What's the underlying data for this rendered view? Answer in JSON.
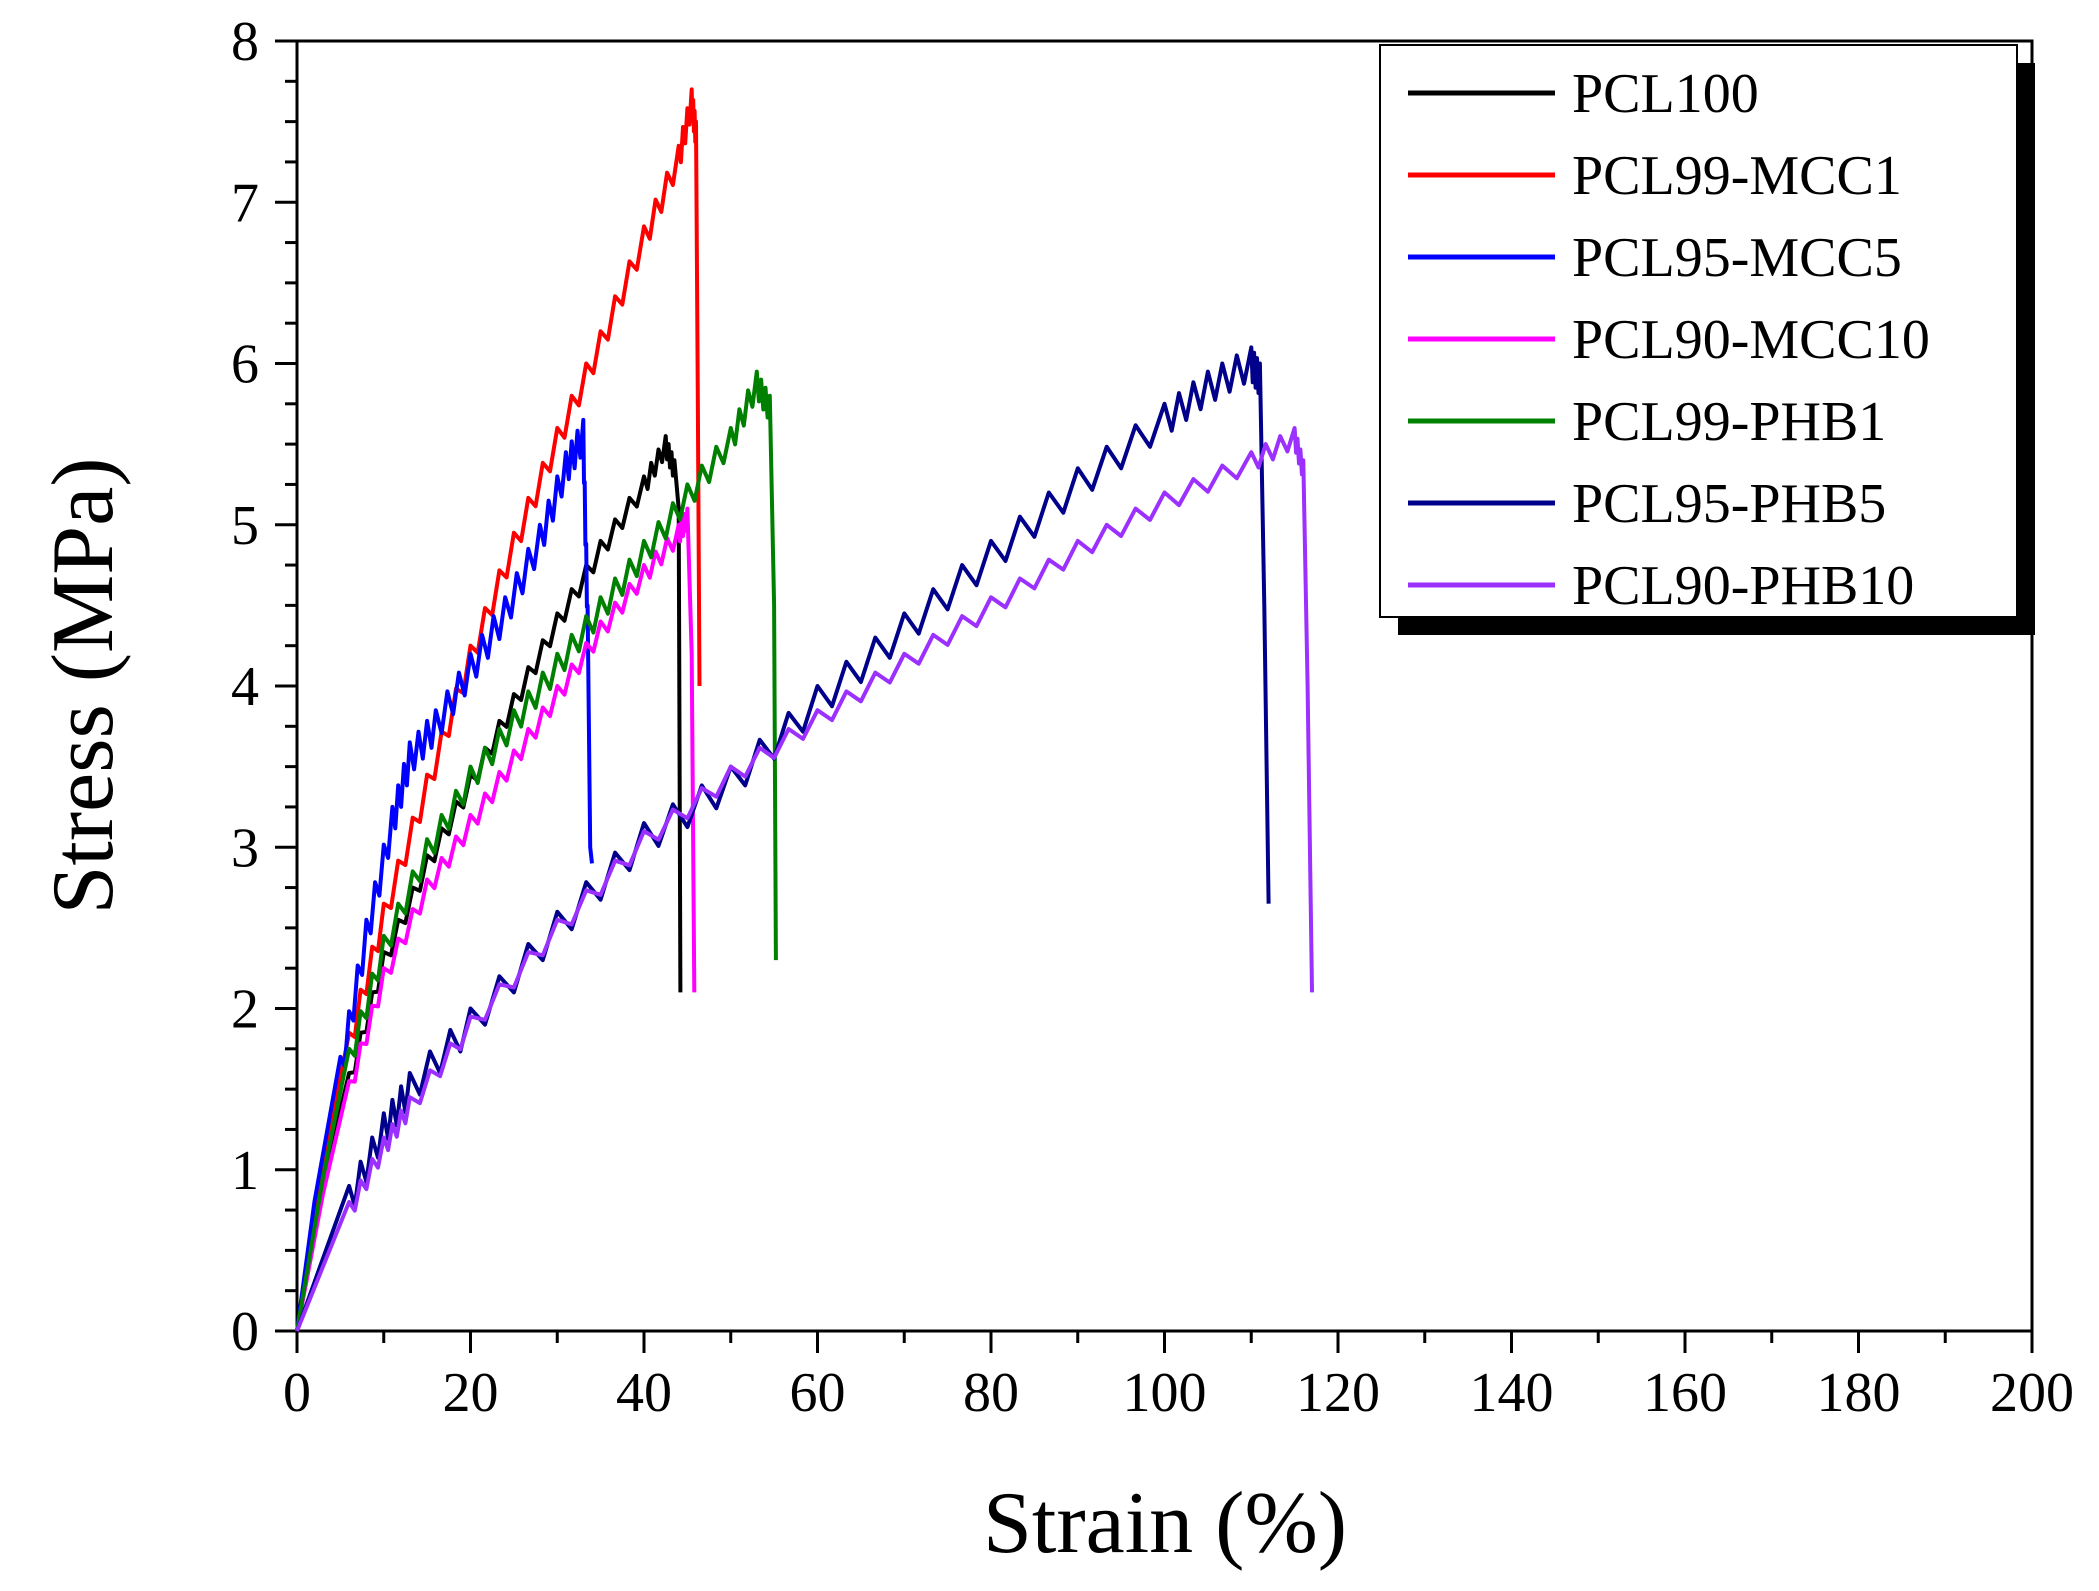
{
  "chart_data": {
    "type": "line",
    "title": "",
    "xlabel": "Strain (%)",
    "ylabel": "Stress (MPa)",
    "xlim": [
      0,
      200
    ],
    "ylim": [
      0,
      8
    ],
    "xticks": [
      "0",
      "20",
      "40",
      "60",
      "80",
      "100",
      "120",
      "140",
      "160",
      "180",
      "200"
    ],
    "yticks": [
      "0",
      "1",
      "2",
      "3",
      "4",
      "5",
      "6",
      "7",
      "8"
    ],
    "grid": false,
    "legend_position": "top-right",
    "series": [
      {
        "name": "PCL100",
        "color": "#000000",
        "points": [
          [
            0,
            0
          ],
          [
            3,
            0.9
          ],
          [
            6,
            1.6
          ],
          [
            10,
            2.35
          ],
          [
            15,
            2.95
          ],
          [
            20,
            3.45
          ],
          [
            25,
            3.95
          ],
          [
            30,
            4.45
          ],
          [
            35,
            4.9
          ],
          [
            40,
            5.3
          ],
          [
            42.5,
            5.55
          ],
          [
            43.5,
            5.4
          ],
          [
            44,
            5.1
          ],
          [
            44.2,
            2.1
          ]
        ]
      },
      {
        "name": "PCL99-MCC1",
        "color": "#ff0000",
        "points": [
          [
            0,
            0
          ],
          [
            3,
            1.0
          ],
          [
            6,
            1.85
          ],
          [
            10,
            2.65
          ],
          [
            15,
            3.45
          ],
          [
            20,
            4.25
          ],
          [
            25,
            4.95
          ],
          [
            30,
            5.6
          ],
          [
            35,
            6.2
          ],
          [
            40,
            6.85
          ],
          [
            44,
            7.35
          ],
          [
            45.5,
            7.7
          ],
          [
            46,
            7.5
          ],
          [
            46.2,
            5.8
          ],
          [
            46.4,
            4.0
          ]
        ]
      },
      {
        "name": "PCL95-MCC5",
        "color": "#0000ff",
        "points": [
          [
            0,
            0
          ],
          [
            2,
            0.8
          ],
          [
            5,
            1.7
          ],
          [
            8,
            2.55
          ],
          [
            11,
            3.25
          ],
          [
            13,
            3.65
          ],
          [
            16,
            3.85
          ],
          [
            20,
            4.2
          ],
          [
            24,
            4.55
          ],
          [
            28,
            5.0
          ],
          [
            31,
            5.45
          ],
          [
            33,
            5.65
          ],
          [
            33.5,
            4.5
          ],
          [
            33.8,
            3.0
          ],
          [
            34,
            2.9
          ]
        ]
      },
      {
        "name": "PCL90-MCC10",
        "color": "#ff00ff",
        "points": [
          [
            0,
            0
          ],
          [
            3,
            0.85
          ],
          [
            6,
            1.55
          ],
          [
            10,
            2.25
          ],
          [
            15,
            2.8
          ],
          [
            20,
            3.2
          ],
          [
            25,
            3.6
          ],
          [
            30,
            4.0
          ],
          [
            35,
            4.4
          ],
          [
            40,
            4.75
          ],
          [
            44,
            5.0
          ],
          [
            45,
            5.1
          ],
          [
            45.5,
            4.2
          ],
          [
            45.8,
            2.1
          ]
        ]
      },
      {
        "name": "PCL99-PHB1",
        "color": "#008000",
        "points": [
          [
            0,
            0
          ],
          [
            3,
            0.95
          ],
          [
            6,
            1.75
          ],
          [
            10,
            2.45
          ],
          [
            15,
            3.05
          ],
          [
            20,
            3.5
          ],
          [
            25,
            3.85
          ],
          [
            30,
            4.2
          ],
          [
            35,
            4.55
          ],
          [
            40,
            4.9
          ],
          [
            45,
            5.25
          ],
          [
            50,
            5.6
          ],
          [
            53,
            5.95
          ],
          [
            54.5,
            5.8
          ],
          [
            55,
            4.5
          ],
          [
            55.2,
            2.3
          ]
        ]
      },
      {
        "name": "PCL95-PHB5",
        "color": "#00008b",
        "points": [
          [
            0,
            0
          ],
          [
            3,
            0.45
          ],
          [
            6,
            0.9
          ],
          [
            10,
            1.35
          ],
          [
            13,
            1.6
          ],
          [
            20,
            2.0
          ],
          [
            30,
            2.6
          ],
          [
            40,
            3.15
          ],
          [
            50,
            3.5
          ],
          [
            60,
            4.0
          ],
          [
            70,
            4.45
          ],
          [
            80,
            4.9
          ],
          [
            90,
            5.35
          ],
          [
            100,
            5.75
          ],
          [
            105,
            5.95
          ],
          [
            110,
            6.1
          ],
          [
            111,
            6.0
          ],
          [
            111.5,
            4.5
          ],
          [
            112,
            2.65
          ]
        ]
      },
      {
        "name": "PCL90-PHB10",
        "color": "#9b30ff",
        "points": [
          [
            0,
            0
          ],
          [
            3,
            0.4
          ],
          [
            6,
            0.8
          ],
          [
            10,
            1.2
          ],
          [
            13,
            1.45
          ],
          [
            20,
            1.95
          ],
          [
            30,
            2.55
          ],
          [
            40,
            3.1
          ],
          [
            50,
            3.5
          ],
          [
            60,
            3.85
          ],
          [
            70,
            4.2
          ],
          [
            80,
            4.55
          ],
          [
            90,
            4.9
          ],
          [
            100,
            5.2
          ],
          [
            110,
            5.45
          ],
          [
            115,
            5.6
          ],
          [
            116,
            5.4
          ],
          [
            116.5,
            4.0
          ],
          [
            117,
            2.1
          ]
        ]
      }
    ]
  }
}
